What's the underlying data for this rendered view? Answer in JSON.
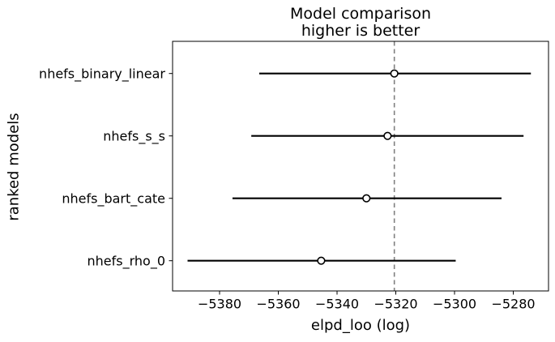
{
  "figure": {
    "background": "#ffffff"
  },
  "chart_data": {
    "type": "scatter",
    "variant": "forest-errorbar-model-comparison",
    "title": "Model comparison",
    "subtitle": "higher is better",
    "xlabel": "elpd_loo (log)",
    "ylabel": "ranked models",
    "categories": [
      "nhefs_binary_linear",
      "nhefs_s_s",
      "nhefs_bart_cate",
      "nhefs_rho_0"
    ],
    "series": [
      {
        "name": "nhefs_binary_linear",
        "elpd_loo": -5320.5,
        "ci_lower": -5366.5,
        "ci_upper": -5274.0
      },
      {
        "name": "nhefs_s_s",
        "elpd_loo": -5322.8,
        "ci_lower": -5369.2,
        "ci_upper": -5276.5
      },
      {
        "name": "nhefs_bart_cate",
        "elpd_loo": -5330.0,
        "ci_lower": -5375.6,
        "ci_upper": -5284.0
      },
      {
        "name": "nhefs_rho_0",
        "elpd_loo": -5345.4,
        "ci_lower": -5390.9,
        "ci_upper": -5299.6
      }
    ],
    "reference_line_x": -5320.5,
    "xlim": [
      -5396,
      -5268
    ],
    "xticks": [
      -5380,
      -5360,
      -5340,
      -5320,
      -5300,
      -5280
    ],
    "xtick_labels": [
      "−5380",
      "−5360",
      "−5340",
      "−5320",
      "−5300",
      "−5280"
    ],
    "grid": false,
    "legend": "none",
    "colors": {
      "errorbar": "#000000",
      "marker_fill": "#ffffff",
      "marker_stroke": "#000000",
      "reference_line": "#808080",
      "frame": "#000000",
      "text": "#000000"
    }
  }
}
